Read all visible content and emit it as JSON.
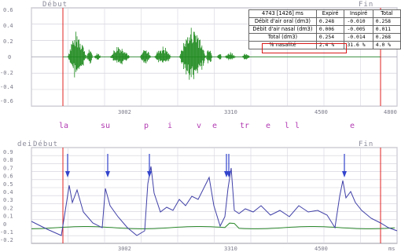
{
  "top_panel": {
    "label_start": "Début",
    "label_end": "Fin",
    "y_ticks": [
      "0.6",
      "0.4",
      "0.2",
      "0",
      "-0.2",
      "-0.4",
      "-0.6"
    ],
    "x_ticks": [
      "3002",
      "3310",
      "4500",
      "4800"
    ]
  },
  "phonemes": [
    "la",
    "su",
    "p",
    "i",
    "v",
    "e",
    "tr",
    "e",
    "l",
    "l",
    "e"
  ],
  "bottom_panel": {
    "label_start": "Début",
    "label_prefix": "dei",
    "label_end": "Fin",
    "y_ticks": [
      "0.9",
      "0.8",
      "0.7",
      "0.6",
      "0.5",
      "0.4",
      "0.3",
      "0.2",
      "0.1",
      "0",
      "-0.1",
      "-0.2"
    ],
    "x_ticks": [
      "3002",
      "3310",
      "4500",
      "ms"
    ]
  },
  "table": {
    "header": [
      "4743 [1426] ms",
      "Expiré",
      "Inspiré",
      "Total"
    ],
    "rows": [
      [
        "Débit d'air oral (dm3)",
        "0.248",
        "-0.010",
        "0.258"
      ],
      [
        "Débit d'air nasal (dm3)",
        "0.006",
        "-0.005",
        "0.011"
      ],
      [
        "Total (dm3)",
        "0.254",
        "-0.014",
        "0.268"
      ],
      [
        "% nasalité",
        "2.4 %",
        "31.6 %",
        "4.0 %"
      ]
    ]
  },
  "colors": {
    "waveform": "#1e8a1e",
    "oral_flow": "#4040a8",
    "nasal_flow": "#2e8a2e",
    "boundary": "#e02020",
    "marker": "#3344cc",
    "highlight_box": "#d81a1a",
    "phoneme_text": "#b23bb2"
  }
}
